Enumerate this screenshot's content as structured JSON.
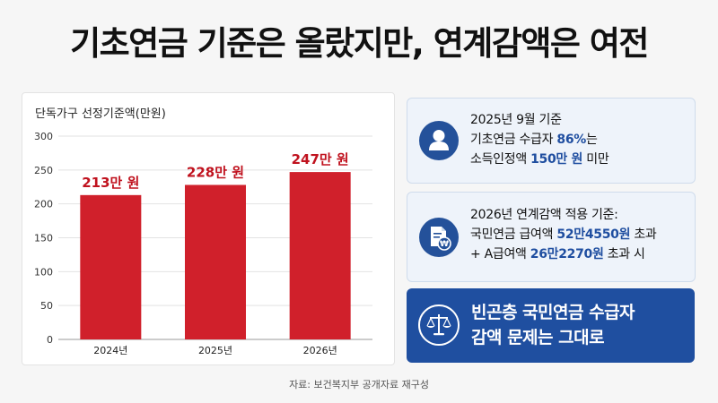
{
  "headline": "기초연금 기준은 올랐지만, 연계감액은 여전",
  "chart_data": {
    "type": "bar",
    "title": "단독가구 선정기준액(만원)",
    "categories": [
      "2024년",
      "2025년",
      "2026년"
    ],
    "values": [
      213,
      228,
      247
    ],
    "data_labels": [
      "213만 원",
      "228만 원",
      "247만 원"
    ],
    "ylim": [
      0,
      300
    ],
    "yticks": [
      0,
      50,
      100,
      150,
      200,
      250,
      300
    ],
    "grid": true,
    "bar_color": "#d0202b",
    "label_color": "#c0121e"
  },
  "cards": {
    "card1": {
      "icon": "person-icon",
      "line1": "2025년 9월 기준",
      "line2_pre": "기초연금 수급자 ",
      "line2_hl": "86%",
      "line2_post": "는",
      "line3_pre": "소득인정액 ",
      "line3_hl": "150만 원",
      "line3_post": " 미만"
    },
    "card2": {
      "icon": "document-won-icon",
      "line1": "2026년 연계감액 적용 기준:",
      "line2_pre": "국민연금 급여액 ",
      "line2_hl": "52만4550원",
      "line2_post": " 초과",
      "line3_pre": "+ A급여액 ",
      "line3_hl": "26만2270원",
      "line3_post": " 초과 시"
    }
  },
  "banner": {
    "icon": "scales-icon",
    "line1": "빈곤층 국민연금 수급자",
    "line2": "감액 문제는 그대로"
  },
  "source": "자료: 보건복지부 공개자료 재구성",
  "colors": {
    "accent_blue": "#1f4fa0",
    "highlight_blue": "#1f4ea0",
    "bar_red": "#d0202b"
  }
}
